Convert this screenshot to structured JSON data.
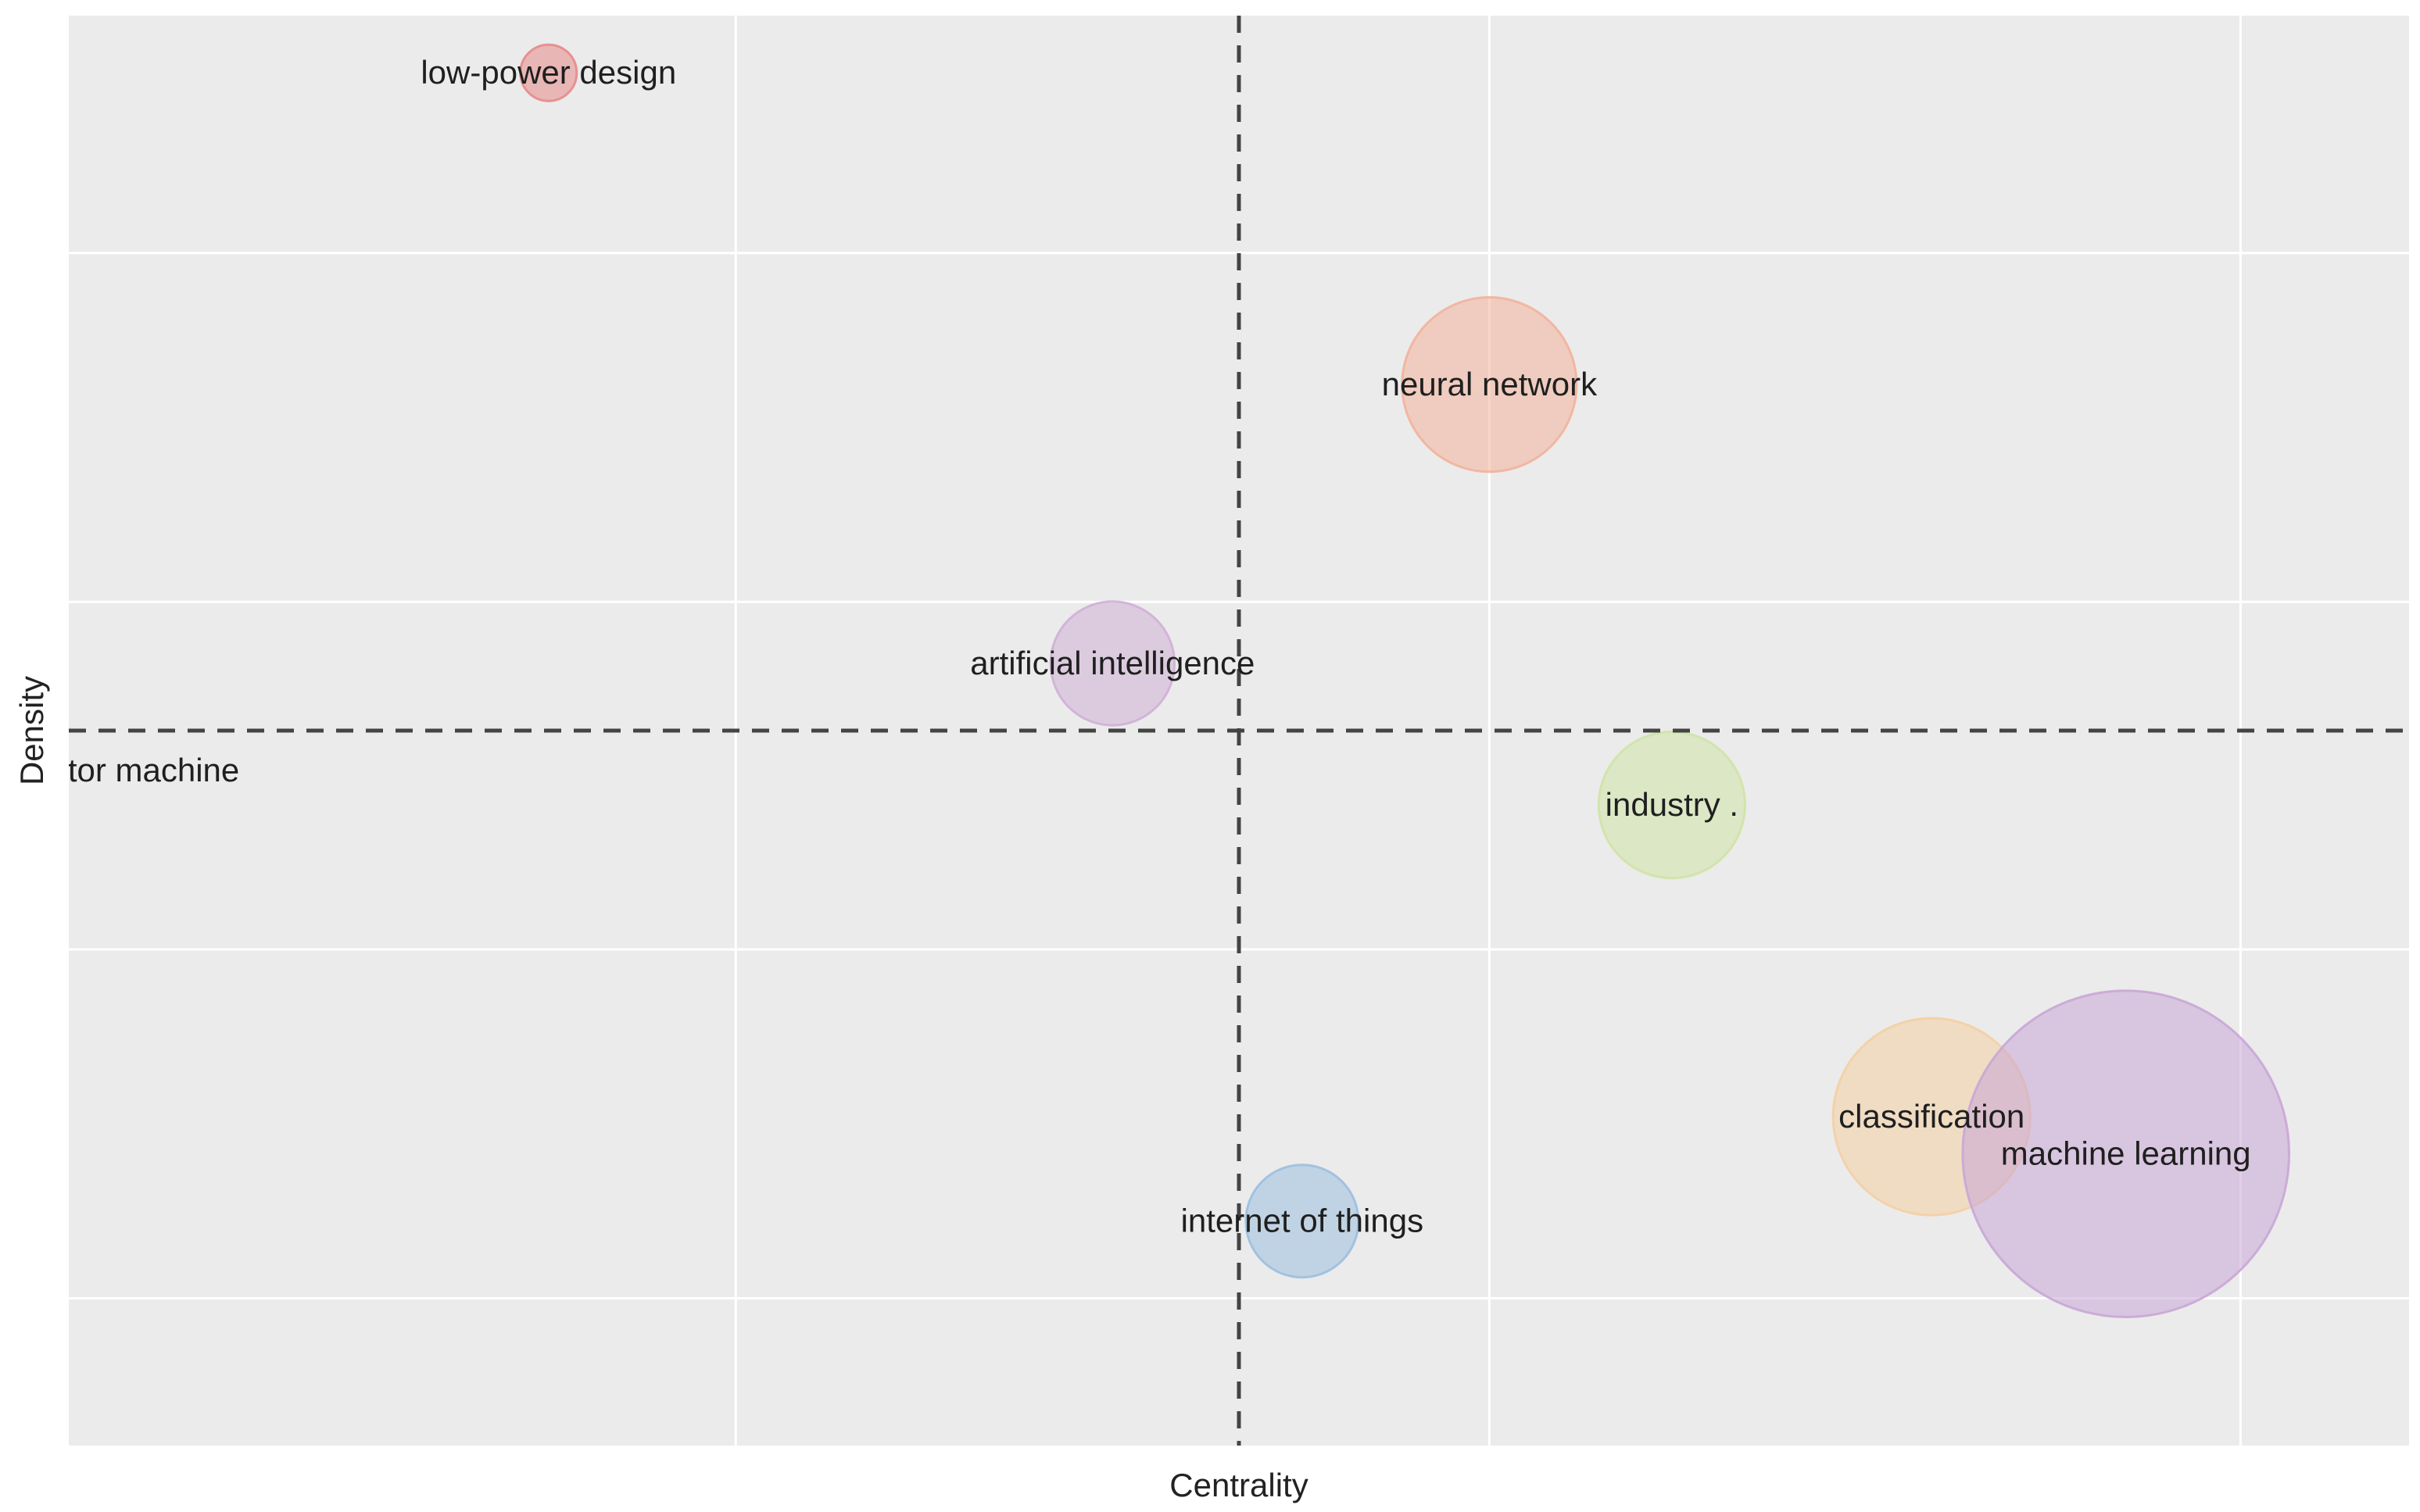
{
  "chart_data": {
    "type": "scatter",
    "subtype": "bubble",
    "title": "",
    "xlabel": "Centrality",
    "ylabel": "Density",
    "xlim": [
      0,
      10
    ],
    "ylim": [
      0,
      10
    ],
    "grid": true,
    "reference_lines": {
      "x": 5,
      "y": 5
    },
    "points": [
      {
        "label": "low-power design",
        "x": 2.05,
        "y": 9.6,
        "size": 1.0,
        "color": "#e88a8a"
      },
      {
        "label": "neural network",
        "x": 6.07,
        "y": 7.42,
        "size": 3.1,
        "color": "#f2b29b"
      },
      {
        "label": "artificial intelligence",
        "x": 4.46,
        "y": 5.47,
        "size": 2.2,
        "color": "#cfb0d6"
      },
      {
        "label": "support vector machine",
        "x": 0.0,
        "y": 4.72,
        "size": 0.4,
        "color": "#cfcfcf"
      },
      {
        "label": "industry .",
        "x": 6.85,
        "y": 4.48,
        "size": 2.6,
        "color": "#cfe3a6"
      },
      {
        "label": "classification",
        "x": 7.96,
        "y": 2.3,
        "size": 3.5,
        "color": "#f4cfa3"
      },
      {
        "label": "machine learning",
        "x": 8.79,
        "y": 2.04,
        "size": 5.8,
        "color": "#c9a6d6"
      },
      {
        "label": "internet of things",
        "x": 5.27,
        "y": 1.57,
        "size": 2.0,
        "color": "#9cbfdf"
      }
    ]
  }
}
